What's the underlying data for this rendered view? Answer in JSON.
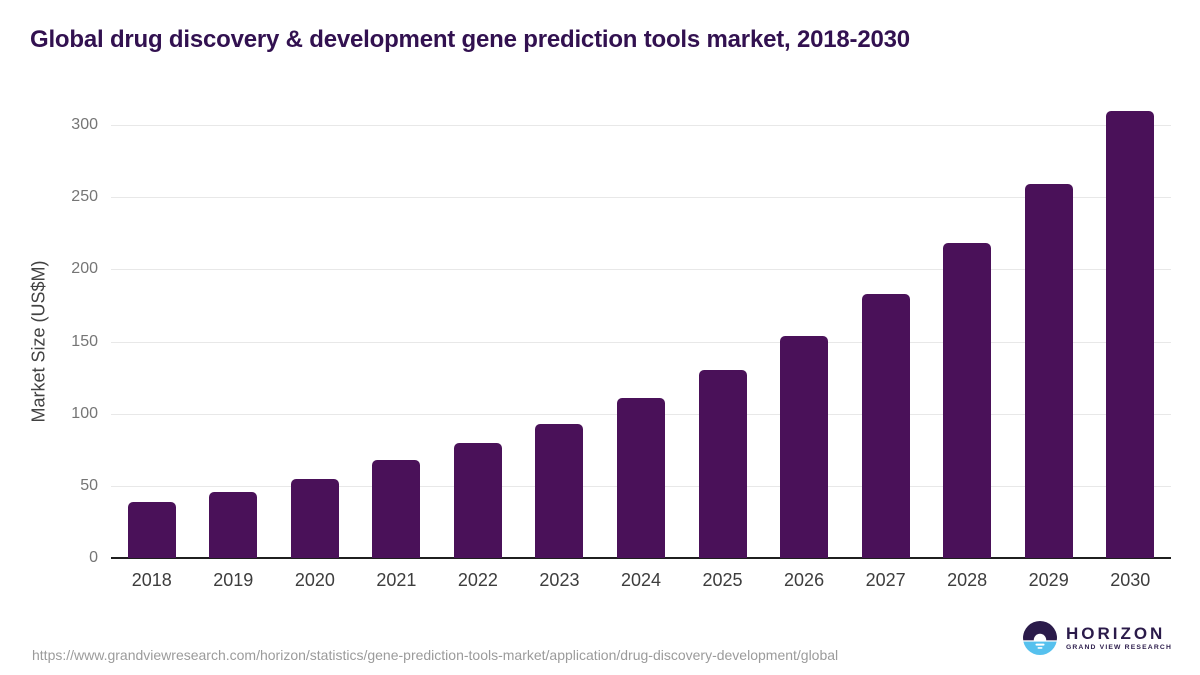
{
  "title": "Global drug discovery & development gene prediction tools market, 2018-2030",
  "source_url": "https://www.grandviewresearch.com/horizon/statistics/gene-prediction-tools-market/application/drug-discovery-development/global",
  "logo": {
    "name": "HORIZON",
    "subtitle": "GRAND VIEW RESEARCH"
  },
  "colors": {
    "bar": "#4A1159",
    "title_text": "#321150",
    "gridline": "#e8e8e8",
    "axis_line": "#1f1f1f",
    "y_tick_text": "#757575",
    "x_tick_text": "#3d3d3d",
    "footer_text": "#9b9b9b",
    "logo_purple": "#2b1b4a",
    "logo_blue": "#56c1ee"
  },
  "chart_data": {
    "type": "bar",
    "title": "Global drug discovery & development gene prediction tools market, 2018-2030",
    "categories": [
      "2018",
      "2019",
      "2020",
      "2021",
      "2022",
      "2023",
      "2024",
      "2025",
      "2026",
      "2027",
      "2028",
      "2029",
      "2030"
    ],
    "values": [
      39,
      46,
      55,
      68,
      80,
      93,
      111,
      130,
      154,
      183,
      218,
      259,
      310
    ],
    "xlabel": "",
    "ylabel": "Market Size (US$M)",
    "ylim": [
      0,
      300
    ],
    "yticks": [
      0,
      50,
      100,
      150,
      200,
      250,
      300
    ],
    "grid": "horizontal",
    "legend": "none",
    "bar_color": "#4A1159"
  }
}
